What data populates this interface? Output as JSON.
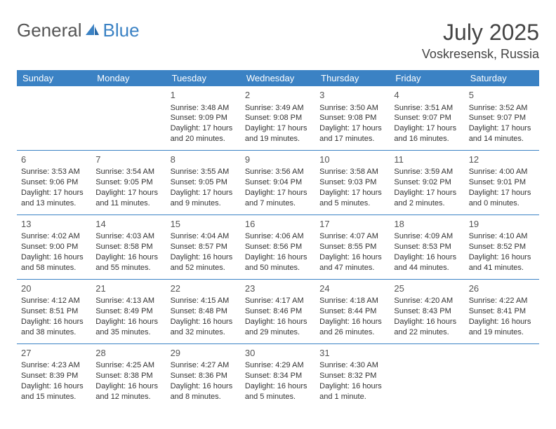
{
  "logo": {
    "text_gray": "General",
    "text_blue": "Blue"
  },
  "header": {
    "month": "July 2025",
    "location": "Voskresensk, Russia"
  },
  "colors": {
    "header_bg": "#3b82c4",
    "header_text": "#ffffff",
    "border": "#3b82c4",
    "text": "#333333"
  },
  "day_headers": [
    "Sunday",
    "Monday",
    "Tuesday",
    "Wednesday",
    "Thursday",
    "Friday",
    "Saturday"
  ],
  "weeks": [
    [
      null,
      null,
      {
        "n": "1",
        "sr": "Sunrise: 3:48 AM",
        "ss": "Sunset: 9:09 PM",
        "dl1": "Daylight: 17 hours",
        "dl2": "and 20 minutes."
      },
      {
        "n": "2",
        "sr": "Sunrise: 3:49 AM",
        "ss": "Sunset: 9:08 PM",
        "dl1": "Daylight: 17 hours",
        "dl2": "and 19 minutes."
      },
      {
        "n": "3",
        "sr": "Sunrise: 3:50 AM",
        "ss": "Sunset: 9:08 PM",
        "dl1": "Daylight: 17 hours",
        "dl2": "and 17 minutes."
      },
      {
        "n": "4",
        "sr": "Sunrise: 3:51 AM",
        "ss": "Sunset: 9:07 PM",
        "dl1": "Daylight: 17 hours",
        "dl2": "and 16 minutes."
      },
      {
        "n": "5",
        "sr": "Sunrise: 3:52 AM",
        "ss": "Sunset: 9:07 PM",
        "dl1": "Daylight: 17 hours",
        "dl2": "and 14 minutes."
      }
    ],
    [
      {
        "n": "6",
        "sr": "Sunrise: 3:53 AM",
        "ss": "Sunset: 9:06 PM",
        "dl1": "Daylight: 17 hours",
        "dl2": "and 13 minutes."
      },
      {
        "n": "7",
        "sr": "Sunrise: 3:54 AM",
        "ss": "Sunset: 9:05 PM",
        "dl1": "Daylight: 17 hours",
        "dl2": "and 11 minutes."
      },
      {
        "n": "8",
        "sr": "Sunrise: 3:55 AM",
        "ss": "Sunset: 9:05 PM",
        "dl1": "Daylight: 17 hours",
        "dl2": "and 9 minutes."
      },
      {
        "n": "9",
        "sr": "Sunrise: 3:56 AM",
        "ss": "Sunset: 9:04 PM",
        "dl1": "Daylight: 17 hours",
        "dl2": "and 7 minutes."
      },
      {
        "n": "10",
        "sr": "Sunrise: 3:58 AM",
        "ss": "Sunset: 9:03 PM",
        "dl1": "Daylight: 17 hours",
        "dl2": "and 5 minutes."
      },
      {
        "n": "11",
        "sr": "Sunrise: 3:59 AM",
        "ss": "Sunset: 9:02 PM",
        "dl1": "Daylight: 17 hours",
        "dl2": "and 2 minutes."
      },
      {
        "n": "12",
        "sr": "Sunrise: 4:00 AM",
        "ss": "Sunset: 9:01 PM",
        "dl1": "Daylight: 17 hours",
        "dl2": "and 0 minutes."
      }
    ],
    [
      {
        "n": "13",
        "sr": "Sunrise: 4:02 AM",
        "ss": "Sunset: 9:00 PM",
        "dl1": "Daylight: 16 hours",
        "dl2": "and 58 minutes."
      },
      {
        "n": "14",
        "sr": "Sunrise: 4:03 AM",
        "ss": "Sunset: 8:58 PM",
        "dl1": "Daylight: 16 hours",
        "dl2": "and 55 minutes."
      },
      {
        "n": "15",
        "sr": "Sunrise: 4:04 AM",
        "ss": "Sunset: 8:57 PM",
        "dl1": "Daylight: 16 hours",
        "dl2": "and 52 minutes."
      },
      {
        "n": "16",
        "sr": "Sunrise: 4:06 AM",
        "ss": "Sunset: 8:56 PM",
        "dl1": "Daylight: 16 hours",
        "dl2": "and 50 minutes."
      },
      {
        "n": "17",
        "sr": "Sunrise: 4:07 AM",
        "ss": "Sunset: 8:55 PM",
        "dl1": "Daylight: 16 hours",
        "dl2": "and 47 minutes."
      },
      {
        "n": "18",
        "sr": "Sunrise: 4:09 AM",
        "ss": "Sunset: 8:53 PM",
        "dl1": "Daylight: 16 hours",
        "dl2": "and 44 minutes."
      },
      {
        "n": "19",
        "sr": "Sunrise: 4:10 AM",
        "ss": "Sunset: 8:52 PM",
        "dl1": "Daylight: 16 hours",
        "dl2": "and 41 minutes."
      }
    ],
    [
      {
        "n": "20",
        "sr": "Sunrise: 4:12 AM",
        "ss": "Sunset: 8:51 PM",
        "dl1": "Daylight: 16 hours",
        "dl2": "and 38 minutes."
      },
      {
        "n": "21",
        "sr": "Sunrise: 4:13 AM",
        "ss": "Sunset: 8:49 PM",
        "dl1": "Daylight: 16 hours",
        "dl2": "and 35 minutes."
      },
      {
        "n": "22",
        "sr": "Sunrise: 4:15 AM",
        "ss": "Sunset: 8:48 PM",
        "dl1": "Daylight: 16 hours",
        "dl2": "and 32 minutes."
      },
      {
        "n": "23",
        "sr": "Sunrise: 4:17 AM",
        "ss": "Sunset: 8:46 PM",
        "dl1": "Daylight: 16 hours",
        "dl2": "and 29 minutes."
      },
      {
        "n": "24",
        "sr": "Sunrise: 4:18 AM",
        "ss": "Sunset: 8:44 PM",
        "dl1": "Daylight: 16 hours",
        "dl2": "and 26 minutes."
      },
      {
        "n": "25",
        "sr": "Sunrise: 4:20 AM",
        "ss": "Sunset: 8:43 PM",
        "dl1": "Daylight: 16 hours",
        "dl2": "and 22 minutes."
      },
      {
        "n": "26",
        "sr": "Sunrise: 4:22 AM",
        "ss": "Sunset: 8:41 PM",
        "dl1": "Daylight: 16 hours",
        "dl2": "and 19 minutes."
      }
    ],
    [
      {
        "n": "27",
        "sr": "Sunrise: 4:23 AM",
        "ss": "Sunset: 8:39 PM",
        "dl1": "Daylight: 16 hours",
        "dl2": "and 15 minutes."
      },
      {
        "n": "28",
        "sr": "Sunrise: 4:25 AM",
        "ss": "Sunset: 8:38 PM",
        "dl1": "Daylight: 16 hours",
        "dl2": "and 12 minutes."
      },
      {
        "n": "29",
        "sr": "Sunrise: 4:27 AM",
        "ss": "Sunset: 8:36 PM",
        "dl1": "Daylight: 16 hours",
        "dl2": "and 8 minutes."
      },
      {
        "n": "30",
        "sr": "Sunrise: 4:29 AM",
        "ss": "Sunset: 8:34 PM",
        "dl1": "Daylight: 16 hours",
        "dl2": "and 5 minutes."
      },
      {
        "n": "31",
        "sr": "Sunrise: 4:30 AM",
        "ss": "Sunset: 8:32 PM",
        "dl1": "Daylight: 16 hours",
        "dl2": "and 1 minute."
      },
      null,
      null
    ]
  ]
}
